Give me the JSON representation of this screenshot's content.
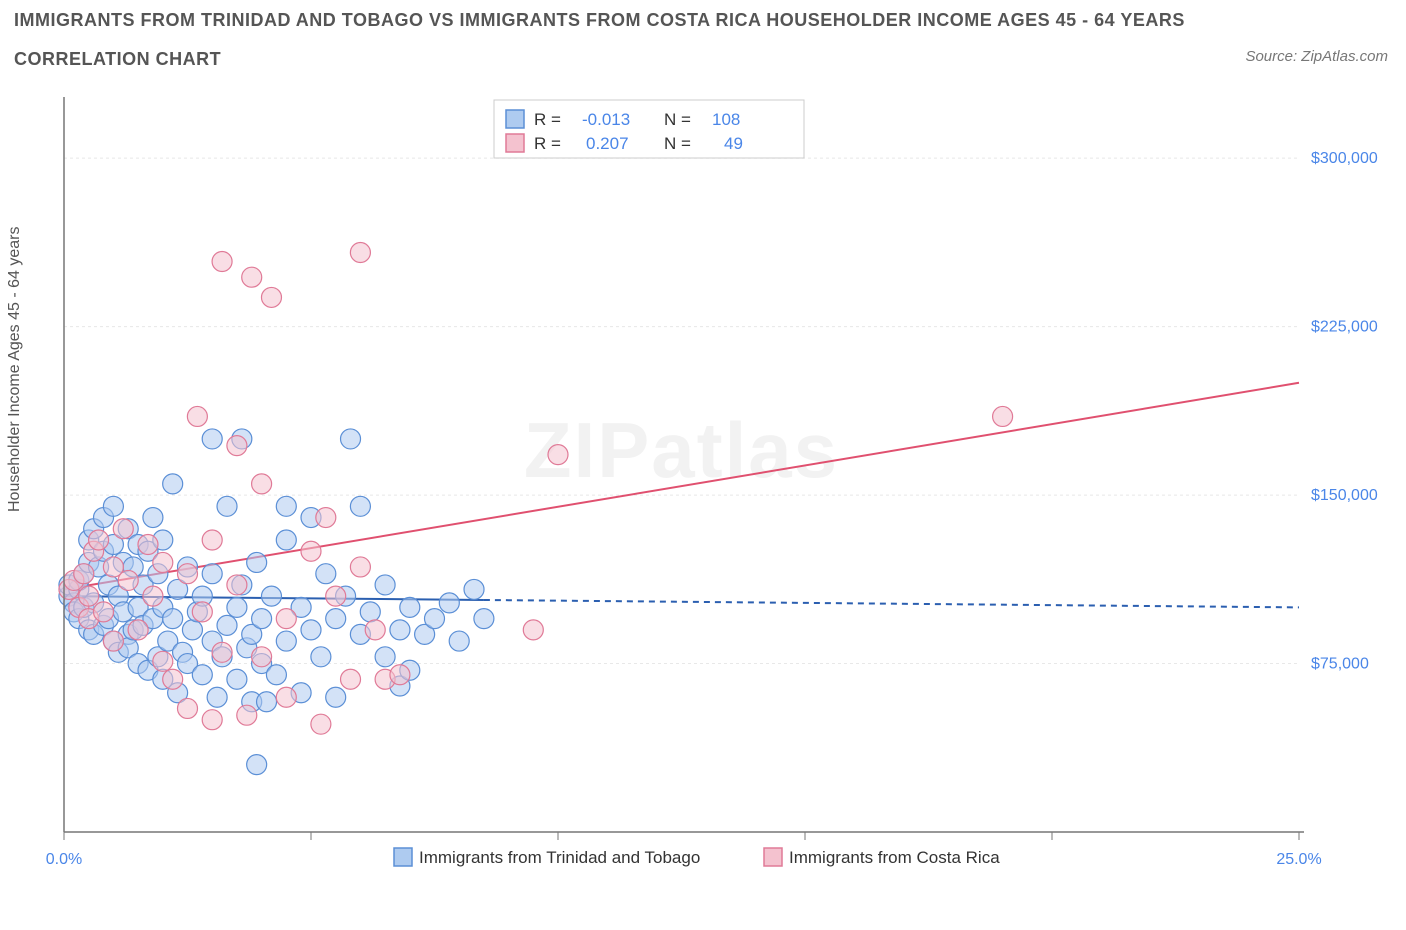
{
  "title_line1": "IMMIGRANTS FROM TRINIDAD AND TOBAGO VS IMMIGRANTS FROM COSTA RICA HOUSEHOLDER INCOME AGES 45 - 64 YEARS",
  "title_line2": "CORRELATION CHART",
  "source": "Source: ZipAtlas.com",
  "y_axis_title": "Householder Income Ages 45 - 64 years",
  "watermark": "ZIPatlas",
  "chart": {
    "type": "scatter",
    "background_color": "#ffffff",
    "grid_color": "#e8e8e8",
    "axis_color": "#777777",
    "xlim": [
      0,
      25
    ],
    "ylim": [
      0,
      325000
    ],
    "x_ticks": [
      0,
      5,
      10,
      15,
      20,
      25
    ],
    "x_tick_labels": [
      "0.0%",
      "",
      "",
      "",
      "",
      "25.0%"
    ],
    "y_ticks": [
      75000,
      150000,
      225000,
      300000
    ],
    "y_tick_labels": [
      "$75,000",
      "$150,000",
      "$225,000",
      "$300,000"
    ],
    "tick_label_color": "#4a86e8",
    "tick_label_fontsize": 16,
    "series": {
      "trinidad": {
        "label": "Immigrants from Trinidad and Tobago",
        "fill": "#aecbf0",
        "stroke": "#5b8fd6",
        "fill_opacity": 0.55,
        "marker_radius": 10,
        "R": "-0.013",
        "N": "108",
        "trend": {
          "y0": 105000,
          "y1": 100000,
          "color": "#2b5fb0",
          "width": 2,
          "solid_until_x": 8.5
        },
        "points": [
          [
            0.1,
            105000
          ],
          [
            0.1,
            110000
          ],
          [
            0.2,
            102000
          ],
          [
            0.2,
            98000
          ],
          [
            0.3,
            108000
          ],
          [
            0.3,
            95000
          ],
          [
            0.3,
            112000
          ],
          [
            0.4,
            100000
          ],
          [
            0.4,
            115000
          ],
          [
            0.5,
            90000
          ],
          [
            0.5,
            120000
          ],
          [
            0.5,
            130000
          ],
          [
            0.6,
            102000
          ],
          [
            0.6,
            88000
          ],
          [
            0.6,
            135000
          ],
          [
            0.7,
            118000
          ],
          [
            0.8,
            92000
          ],
          [
            0.8,
            125000
          ],
          [
            0.8,
            140000
          ],
          [
            0.9,
            95000
          ],
          [
            0.9,
            110000
          ],
          [
            1.0,
            85000
          ],
          [
            1.0,
            128000
          ],
          [
            1.0,
            145000
          ],
          [
            1.1,
            80000
          ],
          [
            1.1,
            105000
          ],
          [
            1.2,
            98000
          ],
          [
            1.2,
            120000
          ],
          [
            1.3,
            88000
          ],
          [
            1.3,
            82000
          ],
          [
            1.3,
            135000
          ],
          [
            1.4,
            90000
          ],
          [
            1.4,
            118000
          ],
          [
            1.5,
            75000
          ],
          [
            1.5,
            100000
          ],
          [
            1.5,
            128000
          ],
          [
            1.6,
            92000
          ],
          [
            1.6,
            110000
          ],
          [
            1.7,
            72000
          ],
          [
            1.7,
            125000
          ],
          [
            1.8,
            95000
          ],
          [
            1.8,
            140000
          ],
          [
            1.9,
            78000
          ],
          [
            1.9,
            115000
          ],
          [
            2.0,
            68000
          ],
          [
            2.0,
            100000
          ],
          [
            2.0,
            130000
          ],
          [
            2.1,
            85000
          ],
          [
            2.2,
            95000
          ],
          [
            2.2,
            155000
          ],
          [
            2.3,
            62000
          ],
          [
            2.3,
            108000
          ],
          [
            2.4,
            80000
          ],
          [
            2.5,
            75000
          ],
          [
            2.5,
            118000
          ],
          [
            2.6,
            90000
          ],
          [
            2.7,
            98000
          ],
          [
            2.8,
            70000
          ],
          [
            2.8,
            105000
          ],
          [
            3.0,
            85000
          ],
          [
            3.0,
            115000
          ],
          [
            3.0,
            175000
          ],
          [
            3.1,
            60000
          ],
          [
            3.2,
            78000
          ],
          [
            3.3,
            92000
          ],
          [
            3.3,
            145000
          ],
          [
            3.5,
            100000
          ],
          [
            3.5,
            68000
          ],
          [
            3.6,
            110000
          ],
          [
            3.6,
            175000
          ],
          [
            3.7,
            82000
          ],
          [
            3.8,
            58000
          ],
          [
            3.8,
            88000
          ],
          [
            3.9,
            120000
          ],
          [
            3.9,
            30000
          ],
          [
            4.0,
            75000
          ],
          [
            4.0,
            95000
          ],
          [
            4.1,
            58000
          ],
          [
            4.2,
            105000
          ],
          [
            4.3,
            70000
          ],
          [
            4.5,
            85000
          ],
          [
            4.5,
            130000
          ],
          [
            4.5,
            145000
          ],
          [
            4.8,
            62000
          ],
          [
            4.8,
            100000
          ],
          [
            5.0,
            90000
          ],
          [
            5.0,
            140000
          ],
          [
            5.2,
            78000
          ],
          [
            5.3,
            115000
          ],
          [
            5.5,
            60000
          ],
          [
            5.5,
            95000
          ],
          [
            5.7,
            105000
          ],
          [
            5.8,
            175000
          ],
          [
            6.0,
            88000
          ],
          [
            6.0,
            145000
          ],
          [
            6.2,
            98000
          ],
          [
            6.5,
            78000
          ],
          [
            6.5,
            110000
          ],
          [
            6.8,
            90000
          ],
          [
            6.8,
            65000
          ],
          [
            7.0,
            72000
          ],
          [
            7.0,
            100000
          ],
          [
            7.3,
            88000
          ],
          [
            7.5,
            95000
          ],
          [
            7.8,
            102000
          ],
          [
            8.0,
            85000
          ],
          [
            8.3,
            108000
          ],
          [
            8.5,
            95000
          ]
        ]
      },
      "costarica": {
        "label": "Immigrants from Costa Rica",
        "fill": "#f4c2cf",
        "stroke": "#e07a97",
        "fill_opacity": 0.55,
        "marker_radius": 10,
        "R": "0.207",
        "N": "49",
        "trend": {
          "y0": 108000,
          "y1": 200000,
          "color": "#e0506f",
          "width": 2
        },
        "points": [
          [
            0.1,
            108000
          ],
          [
            0.2,
            112000
          ],
          [
            0.3,
            100000
          ],
          [
            0.4,
            115000
          ],
          [
            0.5,
            105000
          ],
          [
            0.5,
            95000
          ],
          [
            0.6,
            125000
          ],
          [
            0.7,
            130000
          ],
          [
            0.8,
            98000
          ],
          [
            1.0,
            118000
          ],
          [
            1.0,
            85000
          ],
          [
            1.2,
            135000
          ],
          [
            1.3,
            112000
          ],
          [
            1.5,
            90000
          ],
          [
            1.7,
            128000
          ],
          [
            1.8,
            105000
          ],
          [
            2.0,
            76000
          ],
          [
            2.0,
            120000
          ],
          [
            2.2,
            68000
          ],
          [
            2.5,
            115000
          ],
          [
            2.5,
            55000
          ],
          [
            2.7,
            185000
          ],
          [
            2.8,
            98000
          ],
          [
            3.0,
            50000
          ],
          [
            3.0,
            130000
          ],
          [
            3.2,
            254000
          ],
          [
            3.2,
            80000
          ],
          [
            3.5,
            110000
          ],
          [
            3.5,
            172000
          ],
          [
            3.7,
            52000
          ],
          [
            3.8,
            247000
          ],
          [
            4.0,
            78000
          ],
          [
            4.0,
            155000
          ],
          [
            4.2,
            238000
          ],
          [
            4.5,
            95000
          ],
          [
            4.5,
            60000
          ],
          [
            5.0,
            125000
          ],
          [
            5.2,
            48000
          ],
          [
            5.3,
            140000
          ],
          [
            5.5,
            105000
          ],
          [
            5.8,
            68000
          ],
          [
            6.0,
            118000
          ],
          [
            6.0,
            258000
          ],
          [
            6.3,
            90000
          ],
          [
            6.5,
            68000
          ],
          [
            6.8,
            70000
          ],
          [
            9.5,
            90000
          ],
          [
            10.0,
            168000
          ],
          [
            19.0,
            185000
          ]
        ]
      }
    }
  }
}
